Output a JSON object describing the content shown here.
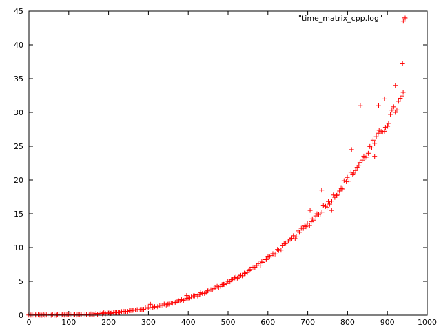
{
  "chart_data": {
    "type": "scatter",
    "title": "",
    "xlabel": "",
    "ylabel": "",
    "xlim": [
      0,
      1000
    ],
    "ylim": [
      0,
      45
    ],
    "x_ticks": [
      0,
      100,
      200,
      300,
      400,
      500,
      600,
      700,
      800,
      900,
      1000
    ],
    "y_ticks": [
      0,
      5,
      10,
      15,
      20,
      25,
      30,
      35,
      40,
      45
    ],
    "grid": false,
    "legend_position": "top-right",
    "marker": "plus",
    "series": [
      {
        "name": "\"time_matrix_cpp.log\"",
        "color": "#ff0000",
        "model": "cubic",
        "x_start": 0,
        "x_end": 940,
        "x_step": 4,
        "y_at_x_end": 32.5,
        "outliers": [
          {
            "x": 832,
            "y": 31
          },
          {
            "x": 868,
            "y": 23.5
          },
          {
            "x": 893,
            "y": 32
          },
          {
            "x": 920,
            "y": 34
          },
          {
            "x": 938,
            "y": 37.2
          },
          {
            "x": 940,
            "y": 43.5
          },
          {
            "x": 942,
            "y": 44
          },
          {
            "x": 706,
            "y": 15.5
          },
          {
            "x": 760,
            "y": 15.5
          },
          {
            "x": 735,
            "y": 18.5
          },
          {
            "x": 810,
            "y": 24.5
          },
          {
            "x": 878,
            "y": 31
          },
          {
            "x": 305,
            "y": 1.6
          },
          {
            "x": 396,
            "y": 2.9
          },
          {
            "x": 560,
            "y": 7.1
          }
        ]
      }
    ]
  }
}
